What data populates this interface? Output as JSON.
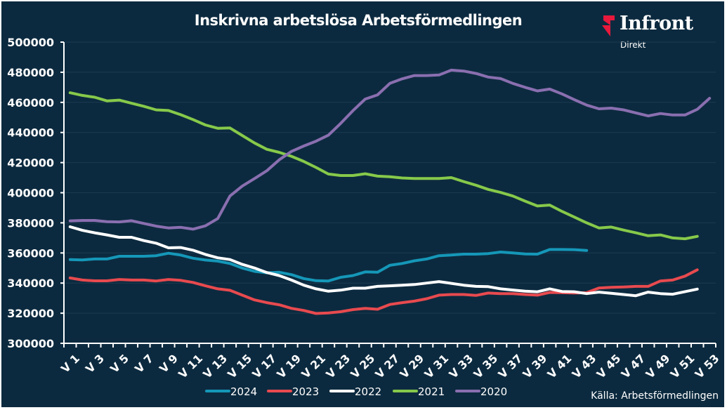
{
  "title": "Inskrivna arbetslösa Arbetsförmedlingen",
  "logo": {
    "brand": "Infront",
    "sub": "Direkt",
    "accent": "#e8193c"
  },
  "source": "Källa:  Arbetsförmedlingen",
  "chart_data": {
    "type": "line",
    "title": "Inskrivna arbetslösa Arbetsförmedlingen",
    "xlabel": "",
    "ylabel": "",
    "ylim": [
      300000,
      500000
    ],
    "yticks": [
      300000,
      320000,
      340000,
      360000,
      380000,
      400000,
      420000,
      440000,
      460000,
      480000,
      500000
    ],
    "grid": true,
    "legend": "bottom",
    "x": [
      "V 1",
      "V 2",
      "V 3",
      "V 4",
      "V 5",
      "V 6",
      "V 7",
      "V 8",
      "V 9",
      "V 10",
      "V 11",
      "V 12",
      "V 13",
      "V 14",
      "V 15",
      "V 16",
      "V 17",
      "V 18",
      "V 19",
      "V 20",
      "V 21",
      "V 22",
      "V 23",
      "V 24",
      "V 25",
      "V 26",
      "V 27",
      "V 28",
      "V 29",
      "V 30",
      "V 31",
      "V 32",
      "V 33",
      "V 34",
      "V 35",
      "V 36",
      "V 37",
      "V 38",
      "V 39",
      "V 40",
      "V 41",
      "V 42",
      "V 43",
      "V 44",
      "V 45",
      "V 46",
      "V 47",
      "V 48",
      "V 49",
      "V 50",
      "V 51",
      "V 52",
      "V 53"
    ],
    "xtick_labels": [
      "V 1",
      "V 3",
      "V 5",
      "V 7",
      "V 9",
      "V 11",
      "V 13",
      "V 15",
      "V 17",
      "V 19",
      "V 21",
      "V 23",
      "V 25",
      "V 27",
      "V 29",
      "V 31",
      "V 33",
      "V 35",
      "V 37",
      "V 39",
      "V 41",
      "V 43",
      "V 45",
      "V 47",
      "V 49",
      "V 51",
      "V 53"
    ],
    "series": [
      {
        "name": "2024",
        "color": "#1597b8",
        "values": [
          355600,
          355400,
          356000,
          356000,
          357800,
          357800,
          357800,
          358200,
          359800,
          358600,
          356500,
          355300,
          354600,
          353000,
          350000,
          347800,
          346800,
          347200,
          345600,
          343000,
          341600,
          341400,
          343800,
          345000,
          347400,
          347200,
          351800,
          353000,
          354800,
          356000,
          358200,
          358600,
          359200,
          359200,
          359600,
          360600,
          360000,
          359300,
          359200,
          362300,
          362300,
          362200,
          361700
        ]
      },
      {
        "name": "2023",
        "color": "#e84a4f",
        "values": [
          343400,
          342000,
          341500,
          341500,
          342400,
          342000,
          342000,
          341400,
          342400,
          341800,
          340400,
          338200,
          336200,
          335200,
          332000,
          328800,
          327000,
          325600,
          323200,
          321800,
          319800,
          320200,
          321000,
          322400,
          323200,
          322600,
          325800,
          327000,
          328000,
          329600,
          332000,
          332400,
          332400,
          331800,
          333400,
          333000,
          333000,
          332400,
          332000,
          333800,
          333600,
          333400,
          333600,
          336700,
          337200,
          337400,
          337800,
          337800,
          341400,
          342000,
          344600,
          348800
        ]
      },
      {
        "name": "2022",
        "color": "#ffffff",
        "values": [
          377400,
          375000,
          373400,
          372000,
          370400,
          370400,
          368200,
          366500,
          363400,
          363600,
          361800,
          359000,
          356800,
          355600,
          352400,
          350000,
          347000,
          345000,
          342000,
          338600,
          336200,
          334600,
          335300,
          336600,
          336600,
          337800,
          338200,
          338600,
          339000,
          340000,
          341000,
          339800,
          338600,
          337800,
          337600,
          336200,
          335400,
          334600,
          334200,
          336200,
          334400,
          334200,
          333000,
          334000,
          333200,
          332400,
          331600,
          334000,
          333000,
          332600,
          334300,
          336000
        ]
      },
      {
        "name": "2021",
        "color": "#86c94a",
        "values": [
          466400,
          464600,
          463400,
          461000,
          461500,
          459400,
          457400,
          455000,
          454600,
          451800,
          448600,
          445000,
          442800,
          443000,
          438000,
          433000,
          428800,
          426800,
          424200,
          420800,
          416800,
          412400,
          411400,
          411400,
          412600,
          411000,
          410600,
          409800,
          409400,
          409400,
          409400,
          410000,
          407400,
          405000,
          402200,
          400200,
          397800,
          394400,
          391200,
          391800,
          387600,
          383800,
          380000,
          376600,
          377200,
          375200,
          373400,
          371400,
          372000,
          370000,
          369400,
          371000
        ]
      },
      {
        "name": "2020",
        "color": "#8a6fb0",
        "values": [
          381300,
          381600,
          381600,
          380800,
          380600,
          381400,
          379600,
          377800,
          376600,
          377000,
          375800,
          378000,
          382800,
          397800,
          404400,
          409400,
          414600,
          421800,
          427400,
          431000,
          434200,
          438200,
          446000,
          454500,
          462200,
          465000,
          472600,
          475600,
          477800,
          477800,
          478200,
          481400,
          480800,
          479200,
          476800,
          475800,
          472600,
          470000,
          467600,
          468800,
          465600,
          461800,
          458200,
          455700,
          456200,
          455000,
          453000,
          451000,
          452600,
          451600,
          451600,
          455400,
          462700
        ]
      }
    ]
  }
}
